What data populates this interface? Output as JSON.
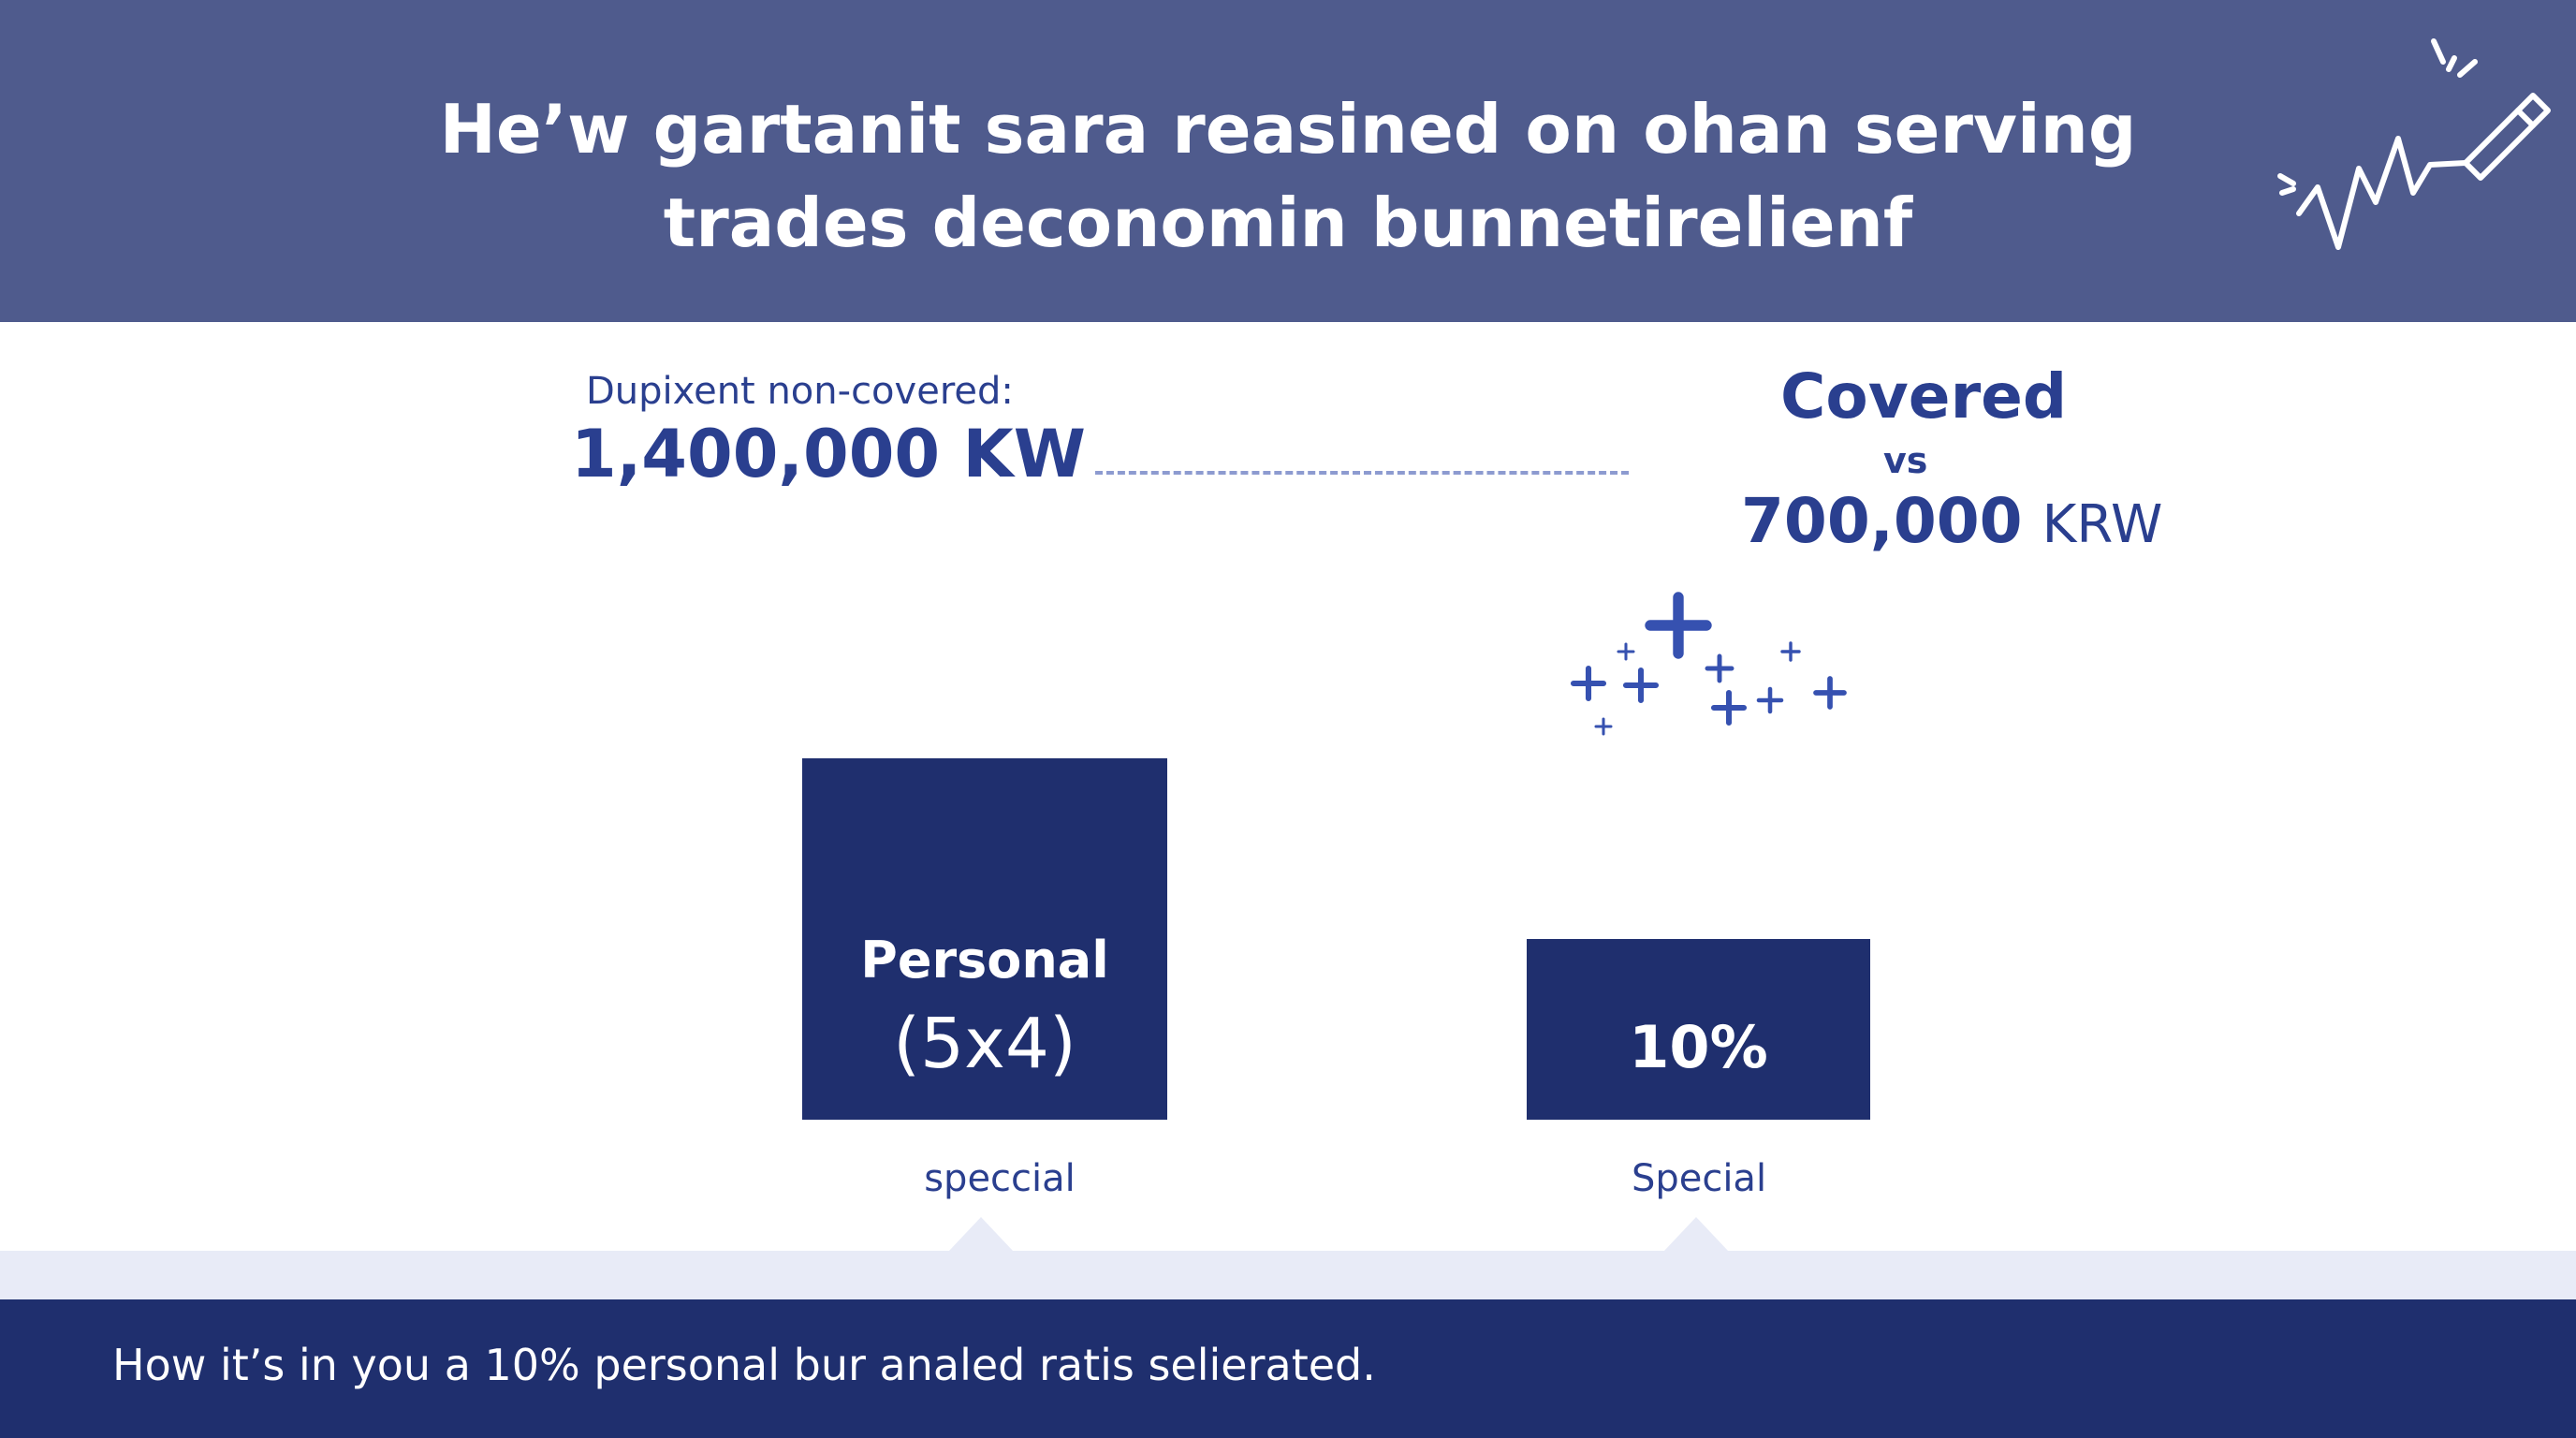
{
  "header": {
    "title_line_1": "He’w gartanit sara reasined on ohan serving",
    "title_line_2": "trades deconomin bunnetirelienf",
    "background_color": "#4f5b8d",
    "doodle_icon": "pulse-line-with-pen-icon"
  },
  "comparison": {
    "left_caption": "Dupixent non-covered:",
    "left_value": "1,400,000 KW",
    "right_title": "Covered",
    "right_vs": "vs",
    "right_value_number": "700,000",
    "right_value_unit": "KRW"
  },
  "chart_data": {
    "type": "bar",
    "categories": [
      "speccial",
      "Special"
    ],
    "values": [
      1400000,
      700000
    ],
    "bar_labels": [
      {
        "line1": "Personal",
        "line2": "(5x4)"
      },
      {
        "line1": "",
        "line2": "10%"
      }
    ],
    "ylim": [
      0,
      1400000
    ],
    "grid": false,
    "bar_color": "#1f2f6e",
    "label_color": "#ffffff",
    "category_label_color": "#2a3f8f",
    "sparkle_color": "#3651b0"
  },
  "footer": {
    "text": "How it’s in you a 10% personal bur analed ratis selierated.",
    "background_color": "#1f2f6e"
  }
}
